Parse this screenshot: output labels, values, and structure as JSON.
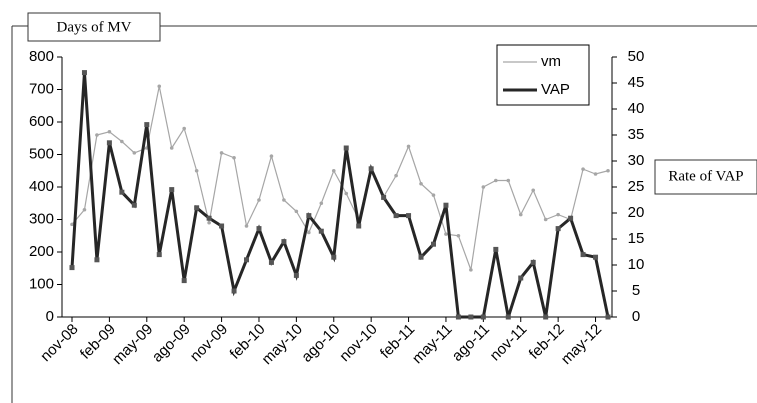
{
  "chart_data": {
    "type": "line",
    "y_label": "Days of MV",
    "y2_label": "Rate of VAP",
    "categories": [
      "nov-08",
      null,
      null,
      "feb-09",
      null,
      null,
      "may-09",
      null,
      null,
      "ago-09",
      null,
      null,
      "nov-09",
      null,
      null,
      "feb-10",
      null,
      null,
      "may-10",
      null,
      null,
      "ago-10",
      null,
      null,
      "nov-10",
      null,
      null,
      "feb-11",
      null,
      null,
      "may-11",
      null,
      null,
      "ago-11",
      null,
      null,
      "nov-11",
      null,
      null,
      "feb-12",
      null,
      null,
      "may-12",
      null
    ],
    "series": [
      {
        "name": "vm",
        "color": "#a6a6a6",
        "values": [
          285,
          330,
          560,
          570,
          540,
          505,
          520,
          710,
          520,
          580,
          450,
          290,
          505,
          490,
          280,
          360,
          495,
          360,
          325,
          260,
          350,
          450,
          380,
          300,
          455,
          370,
          435,
          525,
          410,
          375,
          255,
          250,
          145,
          400,
          420,
          420,
          315,
          390,
          300,
          315,
          300,
          455,
          440,
          450
        ]
      },
      {
        "name": "VAP",
        "color": "#262626",
        "axis": "y2",
        "values": [
          9.5,
          47,
          11,
          33.5,
          24,
          21.5,
          37,
          12,
          24.5,
          7,
          21,
          19,
          17.5,
          5,
          11,
          17,
          10.5,
          14.5,
          8,
          19.5,
          16.5,
          11.5,
          32.5,
          17.5,
          28.5,
          23,
          19.5,
          19.5,
          11.5,
          14,
          21.5,
          0,
          0,
          0,
          13,
          0,
          7.5,
          10.5,
          0,
          17,
          19,
          12,
          11.5,
          0
        ]
      }
    ],
    "ylim": [
      0,
      800
    ],
    "yticks": [
      0,
      100,
      200,
      300,
      400,
      500,
      600,
      700,
      800
    ],
    "y2lim": [
      0,
      50
    ],
    "y2ticks": [
      0,
      5,
      10,
      15,
      20,
      25,
      30,
      35,
      40,
      45,
      50
    ],
    "legend": "upper right"
  }
}
